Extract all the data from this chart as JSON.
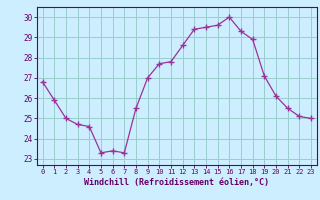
{
  "x": [
    0,
    1,
    2,
    3,
    4,
    5,
    6,
    7,
    8,
    9,
    10,
    11,
    12,
    13,
    14,
    15,
    16,
    17,
    18,
    19,
    20,
    21,
    22,
    23
  ],
  "y": [
    26.8,
    25.9,
    25.0,
    24.7,
    24.6,
    23.3,
    23.4,
    23.3,
    25.5,
    27.0,
    27.7,
    27.8,
    28.6,
    29.4,
    29.5,
    29.6,
    30.0,
    29.3,
    28.9,
    27.1,
    26.1,
    25.5,
    25.1,
    25.0
  ],
  "xlabel": "Windchill (Refroidissement éolien,°C)",
  "xlim": [
    -0.5,
    23.5
  ],
  "ylim": [
    22.7,
    30.5
  ],
  "yticks": [
    23,
    24,
    25,
    26,
    27,
    28,
    29,
    30
  ],
  "xticks": [
    0,
    1,
    2,
    3,
    4,
    5,
    6,
    7,
    8,
    9,
    10,
    11,
    12,
    13,
    14,
    15,
    16,
    17,
    18,
    19,
    20,
    21,
    22,
    23
  ],
  "line_color": "#993399",
  "marker": "+",
  "bg_color": "#cceeff",
  "grid_color": "#99cccc",
  "label_color": "#660066",
  "tick_color": "#660066",
  "spine_color": "#660066"
}
